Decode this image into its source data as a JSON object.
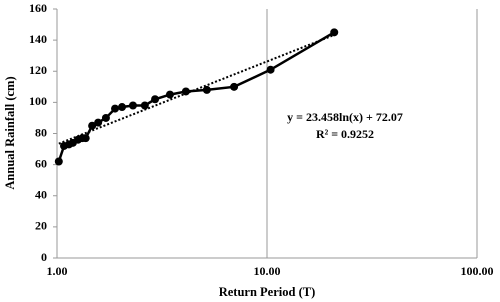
{
  "chart_data": {
    "type": "line",
    "xlabel": "Return Period (T)",
    "ylabel": "Annual Rainfall (cm)",
    "x": [
      1.02,
      1.08,
      1.14,
      1.19,
      1.26,
      1.32,
      1.37,
      1.47,
      1.57,
      1.71,
      1.89,
      2.04,
      2.3,
      2.62,
      2.93,
      3.45,
      4.11,
      5.17,
      6.97,
      10.4,
      20.9
    ],
    "values": [
      62,
      72,
      73,
      74,
      76,
      77,
      77,
      85,
      87,
      90,
      96,
      97,
      98,
      98,
      102,
      105,
      107,
      108,
      110,
      121,
      145
    ],
    "color": "#000000",
    "trendline_color": "#000000",
    "xlog": true,
    "xlim": [
      1,
      100
    ],
    "xticks": [
      {
        "value": 1,
        "label": "1.00"
      },
      {
        "value": 10,
        "label": "10.00"
      },
      {
        "value": 100,
        "label": "100.00"
      }
    ],
    "ylim": [
      0,
      160
    ],
    "yticks": [
      0,
      20,
      40,
      60,
      80,
      100,
      120,
      140,
      160
    ],
    "xgrid": true,
    "ygrid": false,
    "annotations": [
      "y = 23.458ln(x) + 72.07",
      "R² = 0.9252"
    ]
  }
}
